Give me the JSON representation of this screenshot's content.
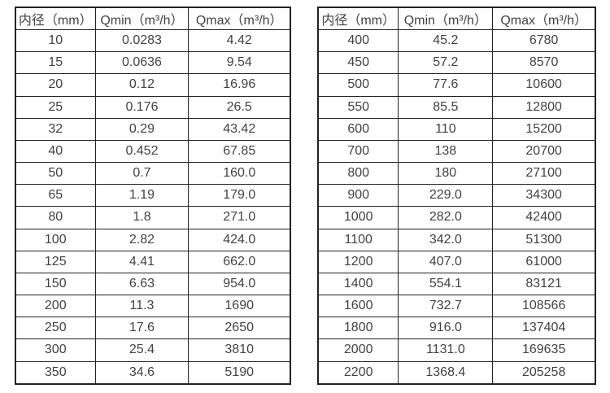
{
  "page": {
    "background": "#ffffff",
    "border_color": "#222222",
    "text_color": "#424242"
  },
  "tables": [
    {
      "name": "flow-spec-table-small-diameters",
      "headers": [
        "内径（mm）",
        "Qmin（m³/h）",
        "Qmax（m³/h）"
      ],
      "rows": [
        [
          "10",
          "0.0283",
          "4.42"
        ],
        [
          "15",
          "0.0636",
          "9.54"
        ],
        [
          "20",
          "0.12",
          "16.96"
        ],
        [
          "25",
          "0.176",
          "26.5"
        ],
        [
          "32",
          "0.29",
          "43.42"
        ],
        [
          "40",
          "0.452",
          "67.85"
        ],
        [
          "50",
          "0.7",
          "160.0"
        ],
        [
          "65",
          "1.19",
          "179.0"
        ],
        [
          "80",
          "1.8",
          "271.0"
        ],
        [
          "100",
          "2.82",
          "424.0"
        ],
        [
          "125",
          "4.41",
          "662.0"
        ],
        [
          "150",
          "6.63",
          "954.0"
        ],
        [
          "200",
          "11.3",
          "1690"
        ],
        [
          "250",
          "17.6",
          "2650"
        ],
        [
          "300",
          "25.4",
          "3810"
        ],
        [
          "350",
          "34.6",
          "5190"
        ]
      ]
    },
    {
      "name": "flow-spec-table-large-diameters",
      "headers": [
        "内径（mm）",
        "Qmin（m³/h）",
        "Qmax（m³/h）"
      ],
      "rows": [
        [
          "400",
          "45.2",
          "6780"
        ],
        [
          "450",
          "57.2",
          "8570"
        ],
        [
          "500",
          "77.6",
          "10600"
        ],
        [
          "550",
          "85.5",
          "12800"
        ],
        [
          "600",
          "110",
          "15200"
        ],
        [
          "700",
          "138",
          "20700"
        ],
        [
          "800",
          "180",
          "27100"
        ],
        [
          "900",
          "229.0",
          "34300"
        ],
        [
          "1000",
          "282.0",
          "42400"
        ],
        [
          "1100",
          "342.0",
          "51300"
        ],
        [
          "1200",
          "407.0",
          "61000"
        ],
        [
          "1400",
          "554.1",
          "83121"
        ],
        [
          "1600",
          "732.7",
          "108566"
        ],
        [
          "1800",
          "916.0",
          "137404"
        ],
        [
          "2000",
          "1131.0",
          "169635"
        ],
        [
          "2200",
          "1368.4",
          "205258"
        ]
      ]
    }
  ]
}
